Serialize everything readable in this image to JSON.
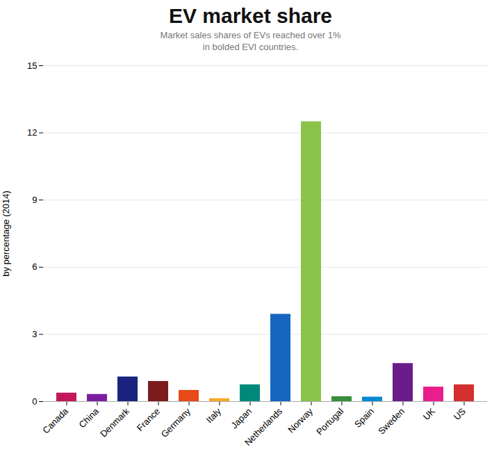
{
  "chart_data": {
    "type": "bar",
    "title": "EV market share",
    "subtitle": [
      "Market sales shares of EVs reached over 1%",
      "in bolded EVI countries."
    ],
    "y_label": "by percentage (2014)",
    "categories": [
      "Canada",
      "China",
      "Denmark",
      "France",
      "Germany",
      "Italy",
      "Japan",
      "Netherlands",
      "Norway",
      "Portugal",
      "Spain",
      "Sweden",
      "UK",
      "US"
    ],
    "values": [
      0.38,
      0.32,
      1.1,
      0.9,
      0.5,
      0.13,
      0.75,
      3.9,
      12.5,
      0.22,
      0.2,
      1.7,
      0.65,
      0.75
    ],
    "colors": [
      "#c2185b",
      "#7b1fa2",
      "#1a237e",
      "#7b1c1c",
      "#e64a19",
      "#f9a825",
      "#00897b",
      "#1565c0",
      "#8bc34a",
      "#388e3c",
      "#0288d1",
      "#6a1d8a",
      "#e91e8c",
      "#d32f2f"
    ],
    "ylim": [
      0,
      15
    ],
    "yticks": [
      0,
      3,
      6,
      9,
      12,
      15
    ],
    "grid": true
  }
}
